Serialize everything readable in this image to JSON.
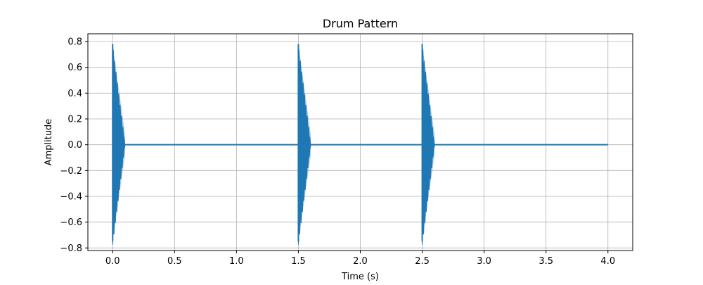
{
  "chart_data": {
    "type": "line",
    "title": "Drum Pattern",
    "xlabel": "Time (s)",
    "ylabel": "Amplitude",
    "xlim": [
      -0.2,
      4.2
    ],
    "ylim": [
      -0.82,
      0.86
    ],
    "xticks": [
      0.0,
      0.5,
      1.0,
      1.5,
      2.0,
      2.5,
      3.0,
      3.5,
      4.0
    ],
    "xtick_labels": [
      "0.0",
      "0.5",
      "1.0",
      "1.5",
      "2.0",
      "2.5",
      "3.0",
      "3.5",
      "4.0"
    ],
    "yticks": [
      -0.8,
      -0.6,
      -0.4,
      -0.2,
      0.0,
      0.2,
      0.4,
      0.6,
      0.8
    ],
    "ytick_labels": [
      "−0.8",
      "−0.6",
      "−0.4",
      "−0.2",
      "0.0",
      "0.2",
      "0.4",
      "0.6",
      "0.8"
    ],
    "grid": true,
    "line_color": "#1f77b4",
    "grid_color": "#b0b0b0",
    "series": [
      {
        "x_range": [
          0.0,
          4.0
        ],
        "baseline": 0.0,
        "hits": [
          {
            "start": 0.0,
            "duration": 0.1,
            "peak_amplitude": 0.78
          },
          {
            "start": 1.5,
            "duration": 0.1,
            "peak_amplitude": 0.78
          },
          {
            "start": 2.5,
            "duration": 0.1,
            "peak_amplitude": 0.78
          }
        ]
      }
    ]
  }
}
